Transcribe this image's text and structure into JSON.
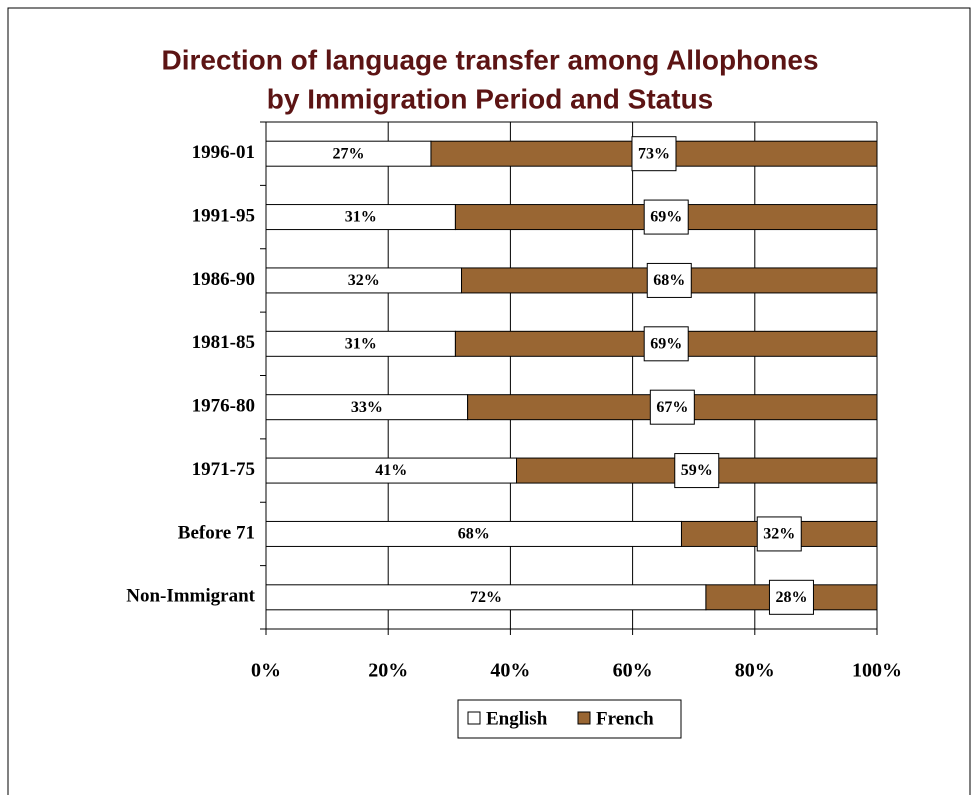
{
  "chart_data": {
    "type": "stacked-bar-horizontal",
    "title": "Direction of language transfer among Allophones",
    "subtitle": "by Immigration Period and Status",
    "categories": [
      "1996-01",
      "1991-95",
      "1986-90",
      "1981-85",
      "1976-80",
      "1971-75",
      "Before 71",
      "Non-Immigrant"
    ],
    "series": [
      {
        "name": "English",
        "color": "#ffffff",
        "values": [
          27,
          31,
          32,
          31,
          33,
          41,
          68,
          72
        ],
        "value_labels": [
          "27%",
          "31%",
          "32%",
          "31%",
          "33%",
          "41%",
          "68%",
          "72%"
        ]
      },
      {
        "name": "French",
        "color": "#996633",
        "values": [
          73,
          69,
          68,
          69,
          67,
          59,
          32,
          28
        ],
        "value_labels": [
          "73%",
          "69%",
          "68%",
          "69%",
          "67%",
          "59%",
          "32%",
          "28%"
        ]
      }
    ],
    "xlim": [
      0,
      100
    ],
    "xticks": [
      {
        "value": 0,
        "label": "0%"
      },
      {
        "value": 20,
        "label": "20%"
      },
      {
        "value": 40,
        "label": "40%"
      },
      {
        "value": 60,
        "label": "60%"
      },
      {
        "value": 80,
        "label": "80%"
      },
      {
        "value": 100,
        "label": "100%"
      }
    ],
    "grid": true,
    "legend": "bottom"
  }
}
